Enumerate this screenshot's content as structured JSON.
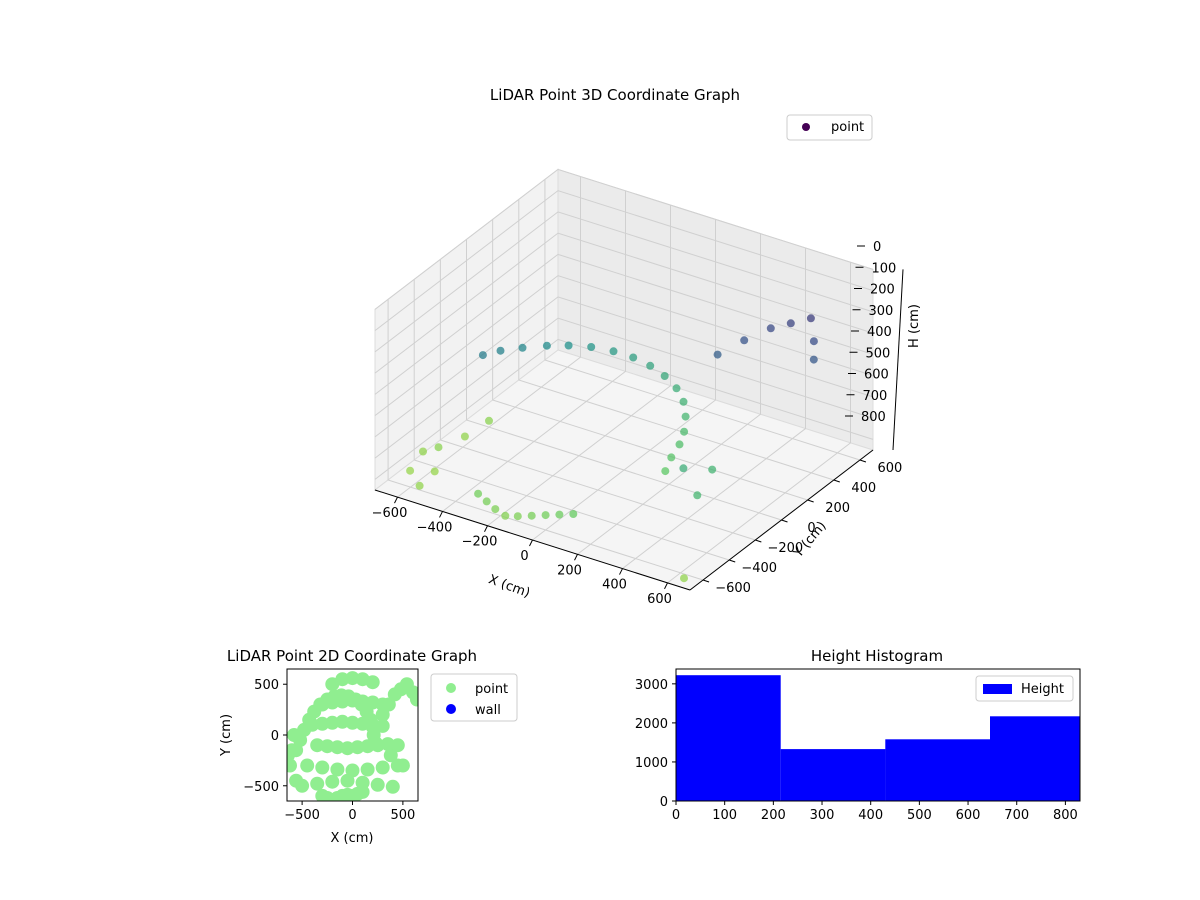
{
  "chart_data": [
    {
      "type": "scatter",
      "projection": "3d",
      "title": "LiDAR Point 3D Coordinate Graph",
      "xlabel": "X (cm)",
      "ylabel": "Y (cm)",
      "zlabel": "H (cm)",
      "xlim": [
        -700,
        700
      ],
      "ylim": [
        -700,
        700
      ],
      "zlim": [
        0,
        850
      ],
      "z_inverted": true,
      "x_ticks": [
        "−600",
        "−400",
        "−200",
        "0",
        "200",
        "400",
        "600"
      ],
      "y_ticks": [
        "−600",
        "−400",
        "−200",
        "0",
        "200",
        "400",
        "600"
      ],
      "z_ticks": [
        "0",
        "100",
        "200",
        "300",
        "400",
        "500",
        "600",
        "700",
        "800"
      ],
      "grid": true,
      "colormap": "viridis",
      "legend": [
        "point"
      ],
      "legend_position": "top-right",
      "series": [
        {
          "name": "point",
          "color": "#440154",
          "x": [
            -540,
            -520,
            -480,
            -430,
            -380,
            -320,
            -250,
            -180,
            -110,
            -40,
            30,
            90,
            140,
            180,
            200,
            210,
            230,
            300,
            360,
            420,
            480,
            540,
            600,
            640,
            -300,
            -250,
            -200,
            -150,
            -100,
            -50,
            0,
            50,
            100,
            -650,
            -620,
            -600,
            -580,
            -560,
            -690,
            -660,
            650,
            380,
            450,
            500
          ],
          "y": [
            -150,
            -50,
            50,
            150,
            230,
            300,
            350,
            380,
            390,
            380,
            350,
            300,
            230,
            150,
            80,
            0,
            -80,
            200,
            300,
            400,
            450,
            500,
            420,
            350,
            -600,
            -620,
            -640,
            -650,
            -640,
            -620,
            -600,
            -580,
            -560,
            -300,
            -150,
            0,
            -450,
            -600,
            -350,
            -500,
            -660,
            -200,
            -100,
            -300
          ],
          "z": [
            420,
            440,
            460,
            480,
            500,
            520,
            540,
            560,
            580,
            600,
            620,
            640,
            660,
            680,
            700,
            720,
            740,
            300,
            260,
            230,
            210,
            190,
            240,
            280,
            780,
            790,
            800,
            810,
            800,
            790,
            780,
            770,
            760,
            820,
            830,
            820,
            840,
            830,
            830,
            840,
            830,
            620,
            650,
            660
          ]
        }
      ]
    },
    {
      "type": "scatter",
      "title": "LiDAR Point 2D Coordinate Graph",
      "xlabel": "X (cm)",
      "ylabel": "Y (cm)",
      "xlim": [
        -650,
        650
      ],
      "ylim": [
        -650,
        650
      ],
      "x_ticks": [
        "−500",
        "0",
        "500"
      ],
      "y_ticks": [
        "500",
        "0",
        "−500"
      ],
      "legend": [
        "point",
        "wall"
      ],
      "legend_position": "outside-right",
      "series": [
        {
          "name": "point",
          "color": "#90ee90",
          "x": [
            -560,
            -520,
            -480,
            -430,
            -380,
            -320,
            -250,
            -180,
            -110,
            -40,
            30,
            90,
            140,
            180,
            200,
            210,
            230,
            300,
            360,
            420,
            480,
            540,
            600,
            640,
            -300,
            -250,
            -200,
            -150,
            -100,
            -50,
            0,
            50,
            100,
            -620,
            -600,
            -580,
            -560,
            -640,
            380,
            450,
            500,
            -200,
            -100,
            0,
            100,
            200,
            -300,
            -200,
            -100,
            0,
            100,
            200,
            300,
            -400,
            -300,
            -200,
            -100,
            0,
            100,
            200,
            300,
            -350,
            -250,
            -150,
            -50,
            50,
            150,
            250,
            350,
            -450,
            -300,
            -150,
            0,
            150,
            300,
            450,
            -500,
            -350,
            -200,
            -50,
            100,
            250,
            400
          ],
          "y": [
            -150,
            -50,
            50,
            150,
            230,
            300,
            350,
            380,
            390,
            380,
            350,
            300,
            230,
            150,
            80,
            0,
            -80,
            200,
            300,
            400,
            450,
            500,
            420,
            350,
            -600,
            -620,
            -640,
            -620,
            -600,
            -590,
            -600,
            -580,
            -560,
            -300,
            -150,
            0,
            -450,
            -200,
            -200,
            -100,
            -300,
            500,
            550,
            560,
            550,
            520,
            300,
            320,
            330,
            340,
            330,
            320,
            300,
            100,
            110,
            120,
            130,
            120,
            110,
            100,
            90,
            -100,
            -110,
            -120,
            -130,
            -120,
            -110,
            -100,
            -90,
            -300,
            -320,
            -340,
            -350,
            -340,
            -320,
            -300,
            -500,
            -480,
            -460,
            -450,
            -470,
            -490,
            -510
          ]
        },
        {
          "name": "wall",
          "color": "#0000ff",
          "x": [],
          "y": []
        }
      ]
    },
    {
      "type": "bar",
      "subtype": "histogram",
      "title": "Height Histogram",
      "xlabel": "",
      "ylabel": "",
      "bins": [
        [
          0,
          215
        ],
        [
          215,
          430
        ],
        [
          430,
          645
        ],
        [
          645,
          830
        ]
      ],
      "values": [
        3220,
        1330,
        1580,
        2170
      ],
      "xlim": [
        0,
        830
      ],
      "ylim": [
        0,
        3380
      ],
      "x_ticks": [
        "0",
        "100",
        "200",
        "300",
        "400",
        "500",
        "600",
        "700",
        "800"
      ],
      "y_ticks": [
        "0",
        "1000",
        "2000",
        "3000"
      ],
      "legend": [
        "Height"
      ],
      "legend_position": "top-right",
      "series": [
        {
          "name": "Height",
          "color": "#0000ff"
        }
      ]
    }
  ]
}
